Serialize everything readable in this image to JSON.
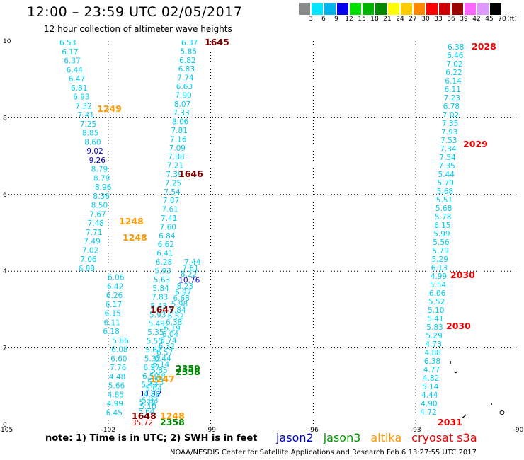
{
  "header": {
    "title": "12:00 – 23:59 UTC 02/05/2017",
    "subtitle": "12 hour collection of altimeter wave heights"
  },
  "legend": {
    "unit": "(ft)",
    "items": [
      {
        "label": "3",
        "color": "#8a8a8a"
      },
      {
        "label": "6",
        "color": "#00e5ff"
      },
      {
        "label": "9",
        "color": "#00b4ee"
      },
      {
        "label": "12",
        "color": "#0000ee"
      },
      {
        "label": "15",
        "color": "#00e000"
      },
      {
        "label": "18",
        "color": "#00b400"
      },
      {
        "label": "21",
        "color": "#008800"
      },
      {
        "label": "24",
        "color": "#ffff00"
      },
      {
        "label": "27",
        "color": "#ffcc00"
      },
      {
        "label": "30",
        "color": "#ff8800"
      },
      {
        "label": "33",
        "color": "#ff0000"
      },
      {
        "label": "36",
        "color": "#cc0000"
      },
      {
        "label": "39",
        "color": "#990000"
      },
      {
        "label": "42",
        "color": "#ff66ff"
      },
      {
        "label": "45",
        "color": "#dd99ff"
      },
      {
        "label": "70",
        "color": "#000000"
      }
    ]
  },
  "axes": {
    "x_ticks": [
      "-105",
      "-102",
      "-99",
      "-96",
      "-93",
      "-90"
    ],
    "y_ticks": [
      "0",
      "2",
      "4",
      "6",
      "8",
      "10"
    ]
  },
  "tracks": [
    {
      "text": "1645",
      "color": "#800000"
    },
    {
      "text": "1249",
      "color": "#ff9900"
    },
    {
      "text": "1646",
      "color": "#800000"
    },
    {
      "text": "1248",
      "color": "#ff9900"
    },
    {
      "text": "1248",
      "color": "#ff9900"
    },
    {
      "text": "1647",
      "color": "#800000"
    },
    {
      "text": "2359",
      "color": "#008800"
    },
    {
      "text": "2358",
      "color": "#008800"
    },
    {
      "text": "1247",
      "color": "#ff9900"
    },
    {
      "text": "1648",
      "color": "#800000"
    },
    {
      "text": "2358",
      "color": "#008800"
    },
    {
      "text": "1248",
      "color": "#ff9900"
    },
    {
      "text": "2028",
      "color": "#ee0000"
    },
    {
      "text": "2029",
      "color": "#ee0000"
    },
    {
      "text": "2030",
      "color": "#ee0000"
    },
    {
      "text": "2030",
      "color": "#ee0000"
    },
    {
      "text": "2031",
      "color": "#ee0000"
    }
  ],
  "colors": {
    "cyan": "#00ccee",
    "blue": "#0000cc",
    "red": "#cc0000"
  },
  "swh": {
    "a": [
      "6.53",
      "6.17",
      "6.37",
      "6.44",
      "6.47",
      "6.81",
      "6.93",
      "7.32",
      "7.41",
      "7.25",
      "8.85",
      "8.60",
      "9.02",
      "9.26",
      "8.79",
      "8.79",
      "8.96",
      "8.36",
      "8.50",
      "7.67",
      "7.48",
      "7.71",
      "7.49",
      "7.02",
      "7.06",
      "6.88",
      "6.06",
      "6.42",
      "6.26",
      "6.17",
      "6.15",
      "6.11",
      "6.18",
      "5.86",
      "6.08",
      "6.60",
      "7.76",
      "4.48",
      "5.66",
      "4.85",
      "4.99",
      "6.45"
    ],
    "b": [
      "6.37",
      "5.85",
      "6.82",
      "6.83",
      "7.74",
      "6.63",
      "7.90",
      "8.07",
      "7.33",
      "8.06",
      "7.81",
      "7.16",
      "7.09",
      "7.88",
      "7.21",
      "7.39",
      "7.25",
      "7.54",
      "7.87",
      "7.61",
      "7.41",
      "7.60",
      "6.84",
      "6.62",
      "6.41",
      "6.28",
      "5.93",
      "5.63",
      "5.84",
      "7.83",
      "5.43",
      "5.93",
      "5.49",
      "5.35",
      "5.55",
      "5.62",
      "5.32",
      "6.57",
      "6.50",
      "5.43",
      "11.12",
      "5.72",
      "5.64"
    ],
    "c": [
      "7.44",
      "7.61",
      "8.22",
      "10.76",
      "8.23",
      "6.97",
      "6.68",
      "5.98",
      "5.84",
      "6.52",
      "6.38",
      "6.19",
      "6.04",
      "5.74",
      "6.32",
      "6.57",
      "6.44",
      "6.14",
      "5.85",
      "5.48",
      "5.23",
      "5.04",
      "4.88",
      "5.33",
      "5.10"
    ],
    "d": [
      "6.38",
      "6.46",
      "7.02",
      "6.22",
      "6.14",
      "6.11",
      "7.23",
      "6.78",
      "7.02",
      "7.35",
      "7.93",
      "7.53",
      "7.34",
      "7.54",
      "7.35",
      "5.44",
      "5.79",
      "5.68",
      "5.51",
      "5.68",
      "5.78",
      "6.15",
      "5.99",
      "5.56",
      "5.79",
      "5.29",
      "6.13",
      "4.99",
      "5.54",
      "6.06",
      "5.52",
      "5.10",
      "5.41",
      "5.83",
      "5.29",
      "4.73",
      "4.88",
      "6.38",
      "4.77",
      "4.82",
      "5.14",
      "4.44",
      "4.90",
      "4.72"
    ],
    "extra": [
      "35.72"
    ]
  },
  "footer": {
    "note": "note: 1) Time is in UTC; 2) SWH is in feet",
    "satellites": [
      {
        "name": "jason2",
        "color": "#0000cc"
      },
      {
        "name": "jason3",
        "color": "#009900"
      },
      {
        "name": "altika",
        "color": "#ff9900"
      },
      {
        "name": "cryosat s3a",
        "color": "#ee0000"
      }
    ],
    "credit": "NOAA/NESDIS Center for Satellite Applications and Research    Feb  6 13:27:55 UTC 2017"
  }
}
